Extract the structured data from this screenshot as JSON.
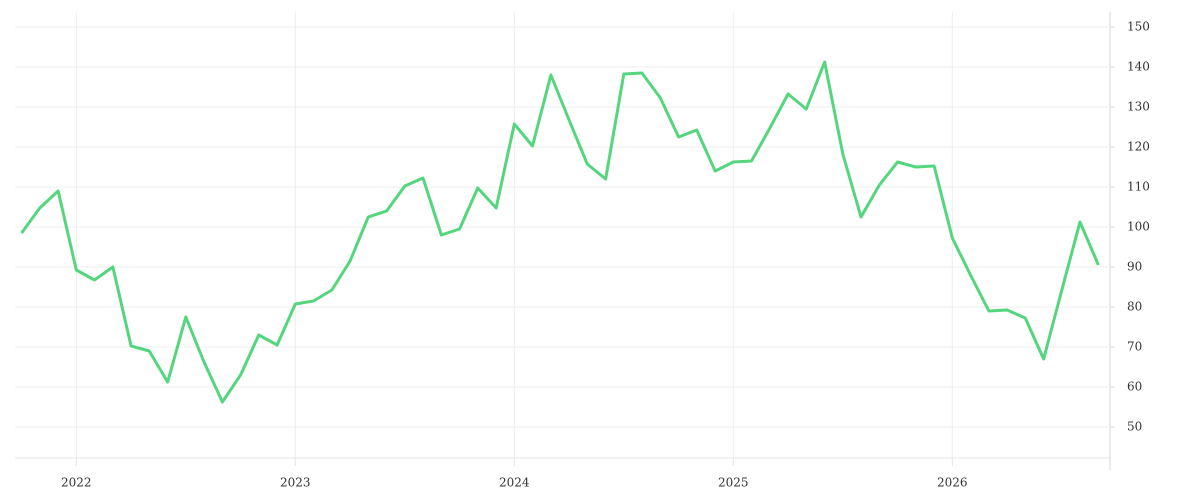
{
  "chart_data": {
    "type": "line",
    "x": [
      2021.75,
      2021.833,
      2021.917,
      2022.0,
      2022.083,
      2022.167,
      2022.25,
      2022.333,
      2022.417,
      2022.5,
      2022.583,
      2022.667,
      2022.75,
      2022.833,
      2022.917,
      2023.0,
      2023.083,
      2023.167,
      2023.25,
      2023.333,
      2023.417,
      2023.5,
      2023.583,
      2023.667,
      2023.75,
      2023.833,
      2023.917,
      2024.0,
      2024.083,
      2024.167,
      2024.25,
      2024.333,
      2024.417,
      2024.5,
      2024.583,
      2024.667,
      2024.75,
      2024.833,
      2024.917,
      2025.0,
      2025.083,
      2025.167,
      2025.25,
      2025.333,
      2025.417,
      2025.5,
      2025.583,
      2025.667,
      2025.75,
      2025.833,
      2025.917,
      2026.0,
      2026.083,
      2026.167,
      2026.25,
      2026.333,
      2026.417,
      2026.5,
      2026.583,
      2026.667
    ],
    "series": [
      {
        "color": "#55d67e",
        "values": [
          98.5,
          104.75,
          109,
          89.25,
          86.75,
          90,
          70.25,
          69,
          61.25,
          77.5,
          66.25,
          56.25,
          63,
          73,
          70.5,
          80.75,
          81.5,
          84.25,
          91.5,
          102.5,
          104,
          110.25,
          112.25,
          98,
          99.5,
          109.75,
          104.75,
          125.75,
          120.25,
          138,
          126.75,
          115.75,
          112,
          138.25,
          138.5,
          132.25,
          122.5,
          124.25,
          114,
          116.25,
          116.5,
          124.75,
          133.25,
          129.5,
          141.25,
          118.25,
          102.5,
          110.5,
          116.25,
          115,
          115.25,
          97.25,
          88,
          79,
          79.25,
          77.25,
          67,
          84.25,
          101.25,
          90.5
        ]
      }
    ],
    "xlim": [
      2021.72,
      2026.72
    ],
    "xticks": [
      2022,
      2023,
      2024,
      2025,
      2026
    ],
    "ylim": [
      42.25,
      153.75
    ],
    "yticks": [
      50,
      60,
      70,
      80,
      90,
      100,
      110,
      120,
      130,
      140,
      150
    ],
    "grid": true
  }
}
